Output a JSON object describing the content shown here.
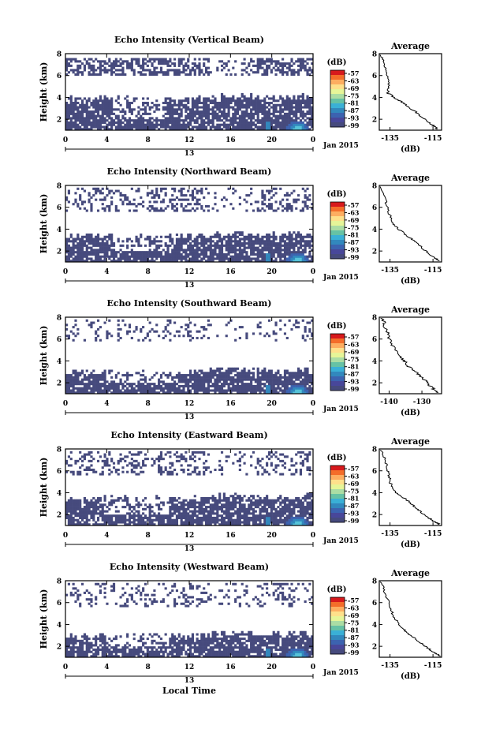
{
  "chart_data": [
    {
      "type": "heatmap",
      "title": "Echo Intensity (Vertical Beam)",
      "ylabel": "Height (km)",
      "yticks": [
        "2",
        "4",
        "6",
        "8"
      ],
      "xticks": [
        "0",
        "4",
        "8",
        "12",
        "16",
        "20",
        "0"
      ],
      "date_tick": "13",
      "date_label": "Jan 2015",
      "ylim": [
        1,
        8
      ],
      "xlim": [
        0,
        24
      ],
      "seed": 3,
      "top_layer": [
        6,
        7.7
      ],
      "top_density": 0.55,
      "low_top": 3.9,
      "gap": [
        4.5,
        9.5
      ],
      "avg": {
        "title": "Average",
        "xlabel": "(dB)",
        "xticks": [
          "-135",
          "-115"
        ],
        "xlim": [
          -140,
          -111
        ],
        "ylim": [
          1,
          8
        ],
        "yticks": [
          "2",
          "4",
          "6",
          "8"
        ],
        "profile": [
          [
            -139,
            7.9
          ],
          [
            -137.5,
            7
          ],
          [
            -136,
            6
          ],
          [
            -135.5,
            5
          ],
          [
            -136,
            4.4
          ],
          [
            -133,
            4
          ],
          [
            -129,
            3.5
          ],
          [
            -124,
            2.8
          ],
          [
            -120,
            2.2
          ],
          [
            -116,
            1.6
          ],
          [
            -113,
            1.1
          ]
        ]
      }
    },
    {
      "type": "heatmap",
      "title": "Echo Intensity (Northward Beam)",
      "ylabel": "Height (km)",
      "yticks": [
        "2",
        "4",
        "6",
        "8"
      ],
      "xticks": [
        "0",
        "4",
        "8",
        "12",
        "16",
        "20",
        "0"
      ],
      "date_tick": "13",
      "date_label": "Jan 2015",
      "ylim": [
        1,
        8
      ],
      "xlim": [
        0,
        24
      ],
      "seed": 11,
      "top_layer": [
        5.5,
        7.9
      ],
      "top_density": 0.3,
      "low_top": 3.4,
      "gap": [
        4.5,
        10
      ],
      "avg": {
        "title": "Average",
        "xlabel": "(dB)",
        "xticks": [
          "-135",
          "-115"
        ],
        "xlim": [
          -140,
          -111
        ],
        "ylim": [
          1,
          8
        ],
        "yticks": [
          "2",
          "4",
          "6",
          "8"
        ],
        "profile": [
          [
            -139,
            7.9
          ],
          [
            -137,
            6.5
          ],
          [
            -135.5,
            5.5
          ],
          [
            -134,
            4.6
          ],
          [
            -131,
            4
          ],
          [
            -127,
            3.4
          ],
          [
            -123,
            2.8
          ],
          [
            -119,
            2.1
          ],
          [
            -115,
            1.5
          ],
          [
            -112,
            1.1
          ]
        ]
      }
    },
    {
      "type": "heatmap",
      "title": "Echo Intensity (Southward Beam)",
      "ylabel": "Height (km)",
      "yticks": [
        "2",
        "4",
        "6",
        "8"
      ],
      "xticks": [
        "0",
        "4",
        "8",
        "12",
        "16",
        "20",
        "0"
      ],
      "date_tick": "13",
      "date_label": "Jan 2015",
      "ylim": [
        1,
        8
      ],
      "xlim": [
        0,
        24
      ],
      "seed": 23,
      "top_layer": [
        5.8,
        7.9
      ],
      "top_density": 0.2,
      "low_top": 3.0,
      "gap": [
        4,
        11
      ],
      "avg": {
        "title": "Average",
        "xlabel": "(dB)",
        "xticks": [
          "-140",
          "-130"
        ],
        "xlim": [
          -143,
          -124
        ],
        "ylim": [
          1,
          8
        ],
        "yticks": [
          "2",
          "4",
          "6",
          "8"
        ],
        "profile": [
          [
            -142,
            7.9
          ],
          [
            -141,
            7
          ],
          [
            -140,
            6
          ],
          [
            -138,
            5
          ],
          [
            -136,
            4.2
          ],
          [
            -134,
            3.5
          ],
          [
            -131,
            2.8
          ],
          [
            -129,
            2.2
          ],
          [
            -127,
            1.6
          ],
          [
            -125,
            1.1
          ]
        ]
      }
    },
    {
      "type": "heatmap",
      "title": "Echo Intensity (Eastward Beam)",
      "ylabel": "Height (km)",
      "yticks": [
        "2",
        "4",
        "6",
        "8"
      ],
      "xticks": [
        "0",
        "4",
        "8",
        "12",
        "16",
        "20",
        "0"
      ],
      "date_tick": "13",
      "date_label": "Jan 2015",
      "ylim": [
        1,
        8
      ],
      "xlim": [
        0,
        24
      ],
      "seed": 37,
      "top_layer": [
        5.5,
        7.9
      ],
      "top_density": 0.3,
      "low_top": 3.5,
      "gap": [
        4,
        10
      ],
      "avg": {
        "title": "Average",
        "xlabel": "(dB)",
        "xticks": [
          "-135",
          "-115"
        ],
        "xlim": [
          -140,
          -111
        ],
        "ylim": [
          1,
          8
        ],
        "yticks": [
          "2",
          "4",
          "6",
          "8"
        ],
        "profile": [
          [
            -139,
            7.9
          ],
          [
            -137,
            6.8
          ],
          [
            -136,
            6
          ],
          [
            -135,
            5.2
          ],
          [
            -134.5,
            4.6
          ],
          [
            -132,
            4
          ],
          [
            -127,
            3.3
          ],
          [
            -123,
            2.6
          ],
          [
            -119,
            2
          ],
          [
            -115,
            1.4
          ],
          [
            -112,
            1.1
          ]
        ]
      }
    },
    {
      "type": "heatmap",
      "title": "Echo Intensity (Westward Beam)",
      "ylabel": "Height (km)",
      "yticks": [
        "2",
        "4",
        "6",
        "8"
      ],
      "xticks": [
        "0",
        "4",
        "8",
        "12",
        "16",
        "20",
        "0"
      ],
      "date_tick": "13",
      "date_label": "Jan 2015",
      "ylim": [
        1,
        8
      ],
      "xlim": [
        0,
        24
      ],
      "seed": 51,
      "top_layer": [
        5.5,
        7.9
      ],
      "top_density": 0.22,
      "low_top": 3.0,
      "gap": [
        4,
        10
      ],
      "avg": {
        "title": "Average",
        "xlabel": "(dB)",
        "xticks": [
          "-135",
          "-115"
        ],
        "xlim": [
          -140,
          -111
        ],
        "ylim": [
          1,
          8
        ],
        "yticks": [
          "2",
          "4",
          "6",
          "8"
        ],
        "profile": [
          [
            -139,
            7.9
          ],
          [
            -137,
            6.8
          ],
          [
            -135,
            5.5
          ],
          [
            -133,
            4.6
          ],
          [
            -130,
            3.8
          ],
          [
            -126,
            3.1
          ],
          [
            -122,
            2.5
          ],
          [
            -118,
            1.9
          ],
          [
            -114,
            1.4
          ],
          [
            -111.5,
            1.1
          ]
        ]
      }
    }
  ],
  "colorbar": {
    "unit": "(dB)",
    "labels": [
      "-57",
      "-63",
      "-69",
      "-75",
      "-81",
      "-87",
      "-93",
      "-99"
    ],
    "colors": [
      "#d7191c",
      "#f46d2a",
      "#fdae61",
      "#fee08b",
      "#e6f598",
      "#abdda4",
      "#66c2a5",
      "#3ab0d6",
      "#3288bd",
      "#3c63b0",
      "#48479a",
      "#464a7d"
    ]
  },
  "xlabel": "Local Time"
}
